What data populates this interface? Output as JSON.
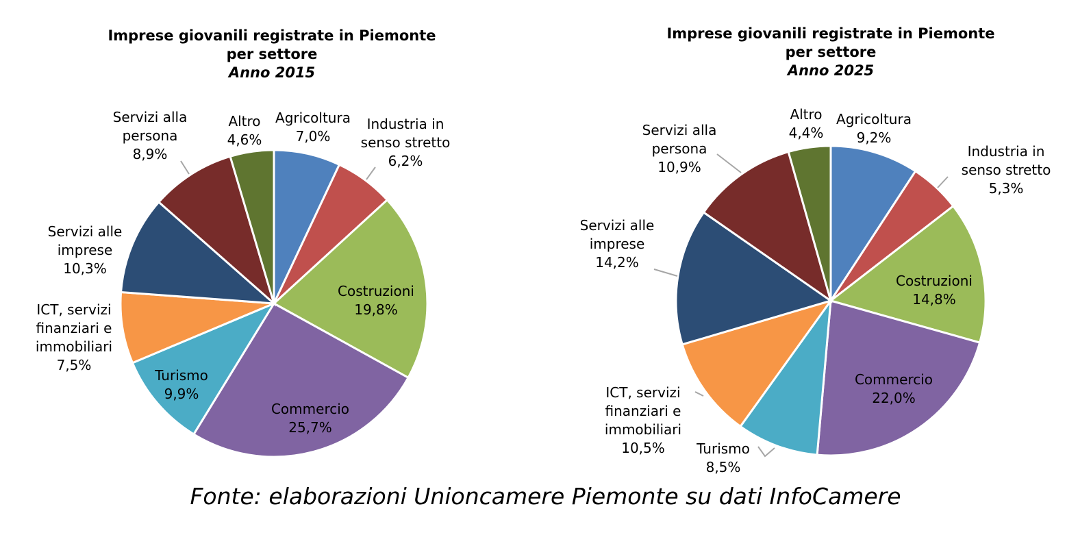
{
  "chart_data": [
    {
      "type": "pie",
      "title": "Imprese giovanili registrate in Piemonte",
      "title_line2": "per settore",
      "subtitle": "Anno 2015",
      "slices": [
        {
          "label": "Agricoltura",
          "value": 7.0,
          "value_label": "7,0%",
          "color": "#4F81BD"
        },
        {
          "label": "Industria in senso stretto",
          "value": 6.2,
          "value_label": "6,2%",
          "color": "#C0504D"
        },
        {
          "label": "Costruzioni",
          "value": 19.8,
          "value_label": "19,8%",
          "color": "#9BBB59"
        },
        {
          "label": "Commercio",
          "value": 25.7,
          "value_label": "25,7%",
          "color": "#8064A2"
        },
        {
          "label": "Turismo",
          "value": 9.9,
          "value_label": "9,9%",
          "color": "#4BACC6"
        },
        {
          "label": "ICT, servizi finanziari e immobiliari",
          "value": 7.5,
          "value_label": "7,5%",
          "color": "#F79646"
        },
        {
          "label": "Servizi alle imprese",
          "value": 10.3,
          "value_label": "10,3%",
          "color": "#2C4D75"
        },
        {
          "label": "Servizi alla persona",
          "value": 8.9,
          "value_label": "8,9%",
          "color": "#772C2A"
        },
        {
          "label": "Altro",
          "value": 4.6,
          "value_label": "4,6%",
          "color": "#5F7530"
        }
      ]
    },
    {
      "type": "pie",
      "title": "Imprese giovanili registrate in Piemonte",
      "title_line2": "per settore",
      "subtitle": "Anno 2025",
      "slices": [
        {
          "label": "Agricoltura",
          "value": 9.2,
          "value_label": "9,2%",
          "color": "#4F81BD"
        },
        {
          "label": "Industria in senso stretto",
          "value": 5.3,
          "value_label": "5,3%",
          "color": "#C0504D"
        },
        {
          "label": "Costruzioni",
          "value": 14.8,
          "value_label": "14,8%",
          "color": "#9BBB59"
        },
        {
          "label": "Commercio",
          "value": 22.0,
          "value_label": "22,0%",
          "color": "#8064A2"
        },
        {
          "label": "Turismo",
          "value": 8.5,
          "value_label": "8,5%",
          "color": "#4BACC6"
        },
        {
          "label": "ICT, servizi finanziari e immobiliari",
          "value": 10.5,
          "value_label": "10,5%",
          "color": "#F79646"
        },
        {
          "label": "Servizi alle imprese",
          "value": 14.2,
          "value_label": "14,2%",
          "color": "#2C4D75"
        },
        {
          "label": "Servizi alla persona",
          "value": 10.9,
          "value_label": "10,9%",
          "color": "#772C2A"
        },
        {
          "label": "Altro",
          "value": 4.4,
          "value_label": "4,4%",
          "color": "#5F7530"
        }
      ]
    }
  ],
  "source_note": "Fonte: elaborazioni Unioncamere Piemonte su dati InfoCamere"
}
